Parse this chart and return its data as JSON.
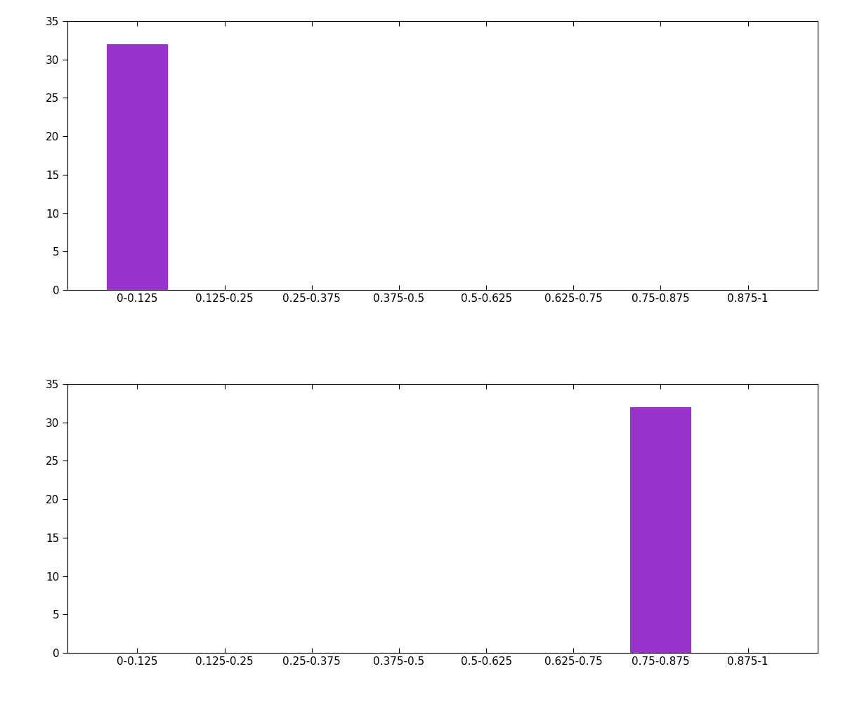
{
  "categories": [
    "0-0.125",
    "0.125-0.25",
    "0.25-0.375",
    "0.375-0.5",
    "0.5-0.625",
    "0.625-0.75",
    "0.75-0.875",
    "0.875-1"
  ],
  "subplot1_values": [
    32,
    0,
    0,
    0,
    0,
    0,
    0,
    0
  ],
  "subplot2_values": [
    0,
    0,
    0,
    0,
    0,
    0,
    32,
    0
  ],
  "bar_color": "#9933CC",
  "ylim": [
    0,
    35
  ],
  "yticks": [
    0,
    5,
    10,
    15,
    20,
    25,
    30,
    35
  ],
  "background_color": "#ffffff",
  "figure_size": [
    12.0,
    10.0
  ],
  "dpi": 100,
  "bar_width": 0.7,
  "xlim_left": -0.8,
  "xlim_right": 7.8,
  "tick_fontsize": 11,
  "subplot_hspace": 0.35
}
